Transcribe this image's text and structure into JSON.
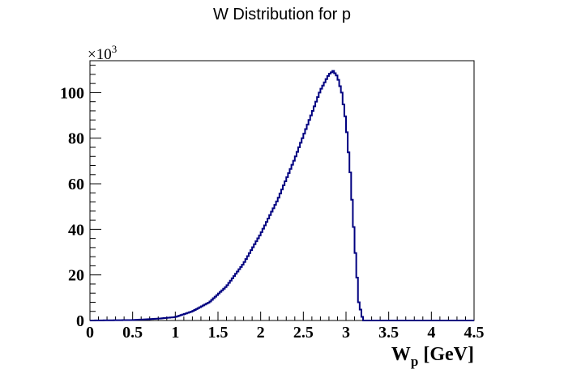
{
  "chart_data": {
    "type": "bar",
    "style": "step-histogram",
    "title": "W Distribution for p",
    "xlabel": "W",
    "xlabel_subscript": "p",
    "xlabel_unit": "[GeV]",
    "ylabel": "",
    "y_multiplier_label": "×10",
    "y_multiplier_exponent": "3",
    "xlim": [
      0,
      4.5
    ],
    "ylim": [
      0,
      114
    ],
    "x_ticks": [
      "0",
      "0.5",
      "1",
      "1.5",
      "2",
      "2.5",
      "3",
      "3.5",
      "4",
      "4.5"
    ],
    "x_tick_values": [
      0,
      0.5,
      1,
      1.5,
      2,
      2.5,
      3,
      3.5,
      4,
      4.5
    ],
    "y_ticks": [
      "0",
      "20",
      "40",
      "60",
      "80",
      "100"
    ],
    "y_tick_values": [
      0,
      20,
      40,
      60,
      80,
      100
    ],
    "grid": false,
    "line_color": "#000080",
    "series": [
      {
        "x": [
          0.0,
          0.5,
          0.8,
          1.0,
          1.2,
          1.4,
          1.6,
          1.8,
          2.0,
          2.2,
          2.4,
          2.6,
          2.7,
          2.8,
          2.85,
          2.9,
          2.95,
          3.0,
          3.05,
          3.1,
          3.15,
          3.2,
          3.3,
          4.5
        ],
        "values": [
          0,
          0.2,
          0.8,
          1.5,
          4,
          8,
          15,
          25,
          38,
          53,
          71,
          91,
          101,
          108,
          109.5,
          107,
          100,
          87,
          65,
          35,
          8,
          0,
          0,
          0
        ]
      }
    ]
  }
}
